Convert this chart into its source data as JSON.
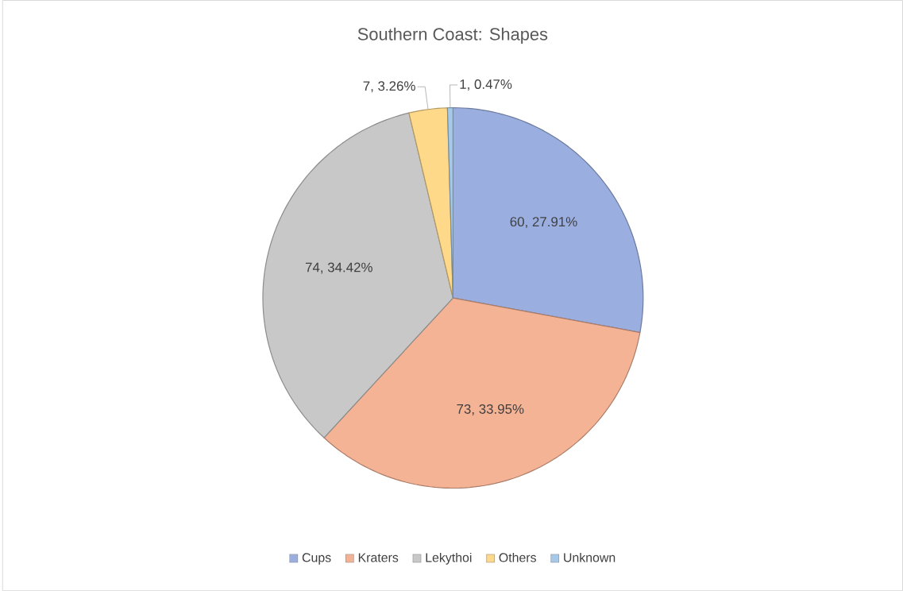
{
  "chart_data": {
    "type": "pie",
    "title": "Southern Coast: Shapes",
    "categories": [
      "Cups",
      "Kraters",
      "Lekythoi",
      "Others",
      "Unknown"
    ],
    "values": [
      60,
      73,
      74,
      7,
      1
    ],
    "colors": [
      "#9aaee0",
      "#f5b396",
      "#c8c8c8",
      "#ffd98a",
      "#a6c9ea"
    ],
    "value_labels": [
      "60, 27.91%",
      "73, 33.95%",
      "74, 34.42%",
      "7, 3.26%",
      "1, 0.47%"
    ],
    "legend": "bottom"
  }
}
